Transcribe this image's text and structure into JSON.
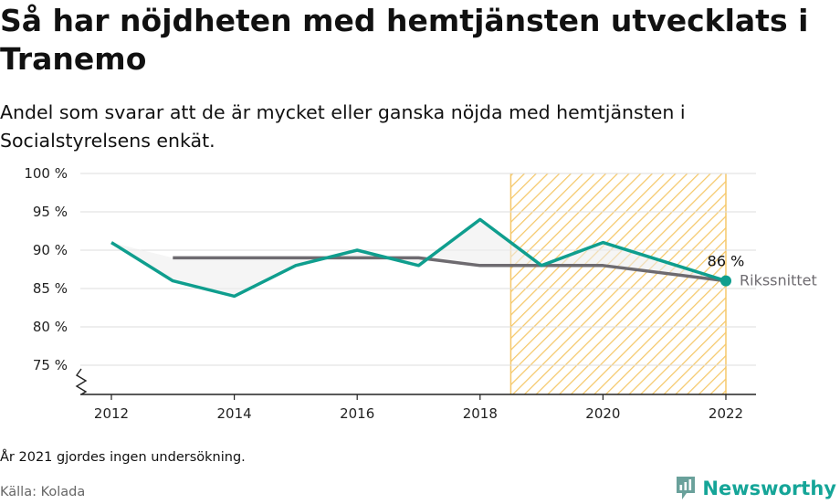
{
  "title": "Så har nöjdheten med hemtjänsten utvecklats i Tranemo",
  "subtitle": "Andel som svarar att de är mycket eller ganska nöjda med hemtjänsten i Socialstyrelsens enkät.",
  "footnote": "År 2021 gjordes ingen undersökning.",
  "source": "Källa: Kolada",
  "brand": "Newsworthy",
  "colors": {
    "tranemo": "#0f9e8e",
    "riket": "#6e6b70",
    "highlight": "#f5c86a",
    "area": "#ededed",
    "grid": "#dddddd"
  },
  "chart_data": {
    "type": "line",
    "x_ticks": [
      "2012",
      "2014",
      "2016",
      "2018",
      "2020",
      "2022"
    ],
    "y_ticks": [
      "75 %",
      "80 %",
      "85 %",
      "90 %",
      "95 %",
      "100 %"
    ],
    "ylim": [
      75,
      100
    ],
    "xlim": [
      2012,
      2022
    ],
    "y_axis_broken": true,
    "grid": true,
    "series": [
      {
        "key": "tranemo",
        "x": [
          2012,
          2013,
          2014,
          2015,
          2016,
          2017,
          2018,
          2019,
          2020,
          2022
        ],
        "values": [
          91,
          86,
          84,
          88,
          90,
          88,
          94,
          88,
          91,
          86
        ]
      },
      {
        "key": "riket",
        "name": "Rikssnittet",
        "x": [
          2013,
          2014,
          2015,
          2016,
          2017,
          2018,
          2019,
          2020,
          2022
        ],
        "values": [
          89,
          89,
          89,
          89,
          89,
          88,
          88,
          88,
          86
        ]
      }
    ],
    "highlight_range": [
      2018.5,
      2022
    ],
    "end_label": "86 %",
    "end_label_series": "tranemo"
  }
}
